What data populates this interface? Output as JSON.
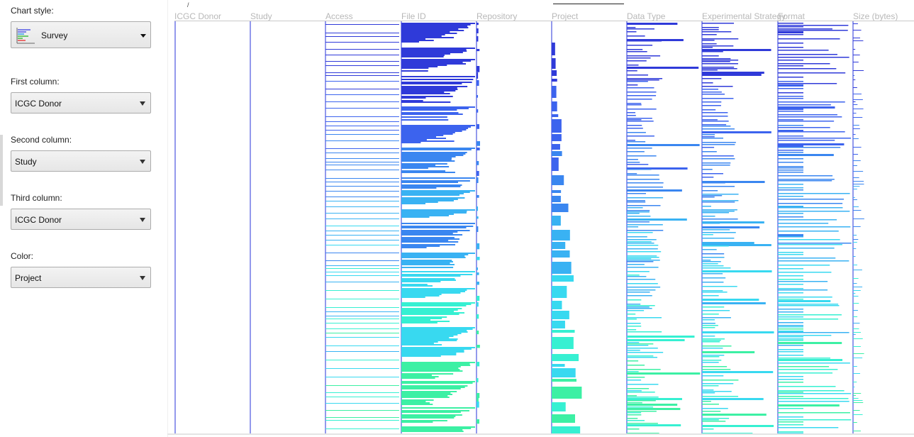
{
  "controls": {
    "chart_style": {
      "label": "Chart style:",
      "value": "Survey",
      "icon": "survey-chart-icon"
    },
    "first_column": {
      "label": "First column:",
      "value": "ICGC Donor"
    },
    "second_column": {
      "label": "Second column:",
      "value": "Study"
    },
    "third_column": {
      "label": "Third column:",
      "value": "ICGC Donor"
    },
    "color": {
      "label": "Color:",
      "value": "Project"
    }
  },
  "survey": {
    "columns": [
      "ICGC Donor",
      "Study",
      "Access",
      "File ID",
      "Repository",
      "Project",
      "Data Type",
      "Experimental Strategy",
      "Format",
      "Size (bytes)"
    ],
    "header_color": "#b8b8b8",
    "axis_color": "#4b55e0",
    "palette": [
      "#2f3ad9",
      "#3c63ee",
      "#3a86f0",
      "#39b2f3",
      "#38d9f0",
      "#36f0d2",
      "#3cf0a4"
    ],
    "top_tick": "/"
  }
}
